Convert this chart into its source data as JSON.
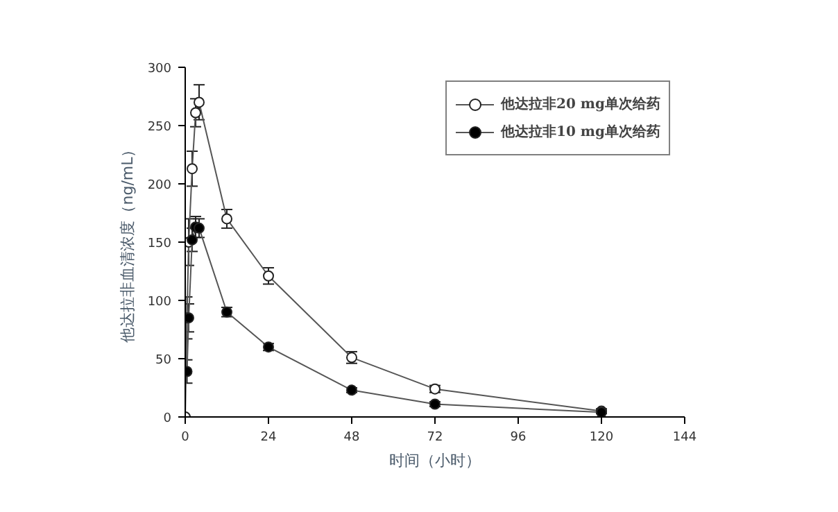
{
  "chart_data": {
    "type": "line",
    "xlabel": "时间（小时）",
    "ylabel": "他达拉非血清浓度（ng/mL）",
    "xlim": [
      0,
      144
    ],
    "xticks": [
      0,
      24,
      48,
      72,
      96,
      120,
      144
    ],
    "ylim": [
      0,
      300
    ],
    "yticks": [
      0,
      50,
      100,
      150,
      200,
      250,
      300
    ],
    "grid": false,
    "legend": "top right",
    "marker": "circle",
    "line_style": "solid",
    "series": [
      {
        "name": "他达拉非20 mg单次给药",
        "color": "#ffffff",
        "x": [
          0,
          0.5,
          1,
          2,
          3,
          4,
          12,
          24,
          48,
          72,
          120
        ],
        "values": [
          0,
          85,
          150,
          213,
          261,
          270,
          170,
          121,
          51,
          24,
          5
        ],
        "errors": [
          null,
          18,
          20,
          15,
          12,
          15,
          8,
          7,
          5,
          3,
          2
        ]
      },
      {
        "name": "他达拉非10 mg单次给药",
        "color": "#000000",
        "x": [
          0.5,
          1,
          2,
          3,
          4,
          12,
          24,
          48,
          72,
          120
        ],
        "values": [
          39,
          85,
          152,
          163,
          162,
          90,
          60,
          23,
          11,
          4
        ],
        "errors": [
          10,
          12,
          10,
          9,
          8,
          4,
          3,
          2,
          2,
          1
        ]
      }
    ]
  }
}
